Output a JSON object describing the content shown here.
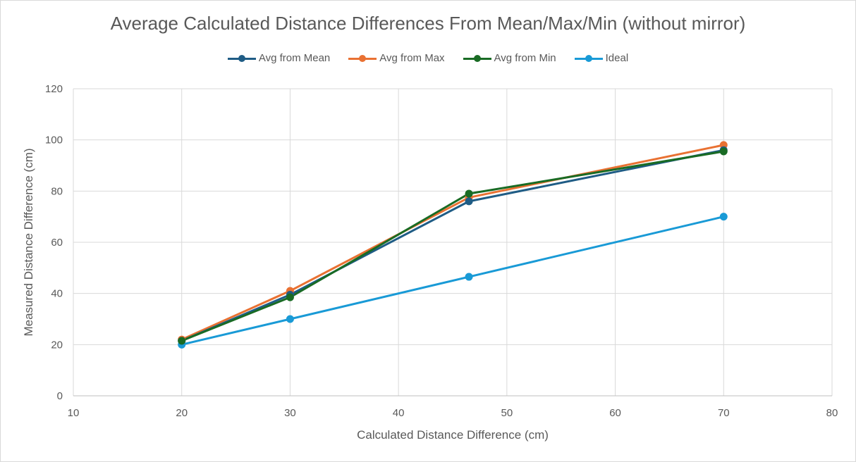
{
  "chart_data": {
    "type": "line",
    "title": "Average Calculated Distance Differences From Mean/Max/Min (without mirror)",
    "xlabel": "Calculated Distance Difference (cm)",
    "ylabel": "Measured Distance Difference (cm)",
    "xlim": [
      10,
      80
    ],
    "ylim": [
      0,
      120
    ],
    "xticks": [
      10,
      20,
      30,
      40,
      50,
      60,
      70,
      80
    ],
    "yticks": [
      0,
      20,
      40,
      60,
      80,
      100,
      120
    ],
    "grid": true,
    "legend_position": "top",
    "series": [
      {
        "name": "Avg from Mean",
        "color": "#1f5c85",
        "x": [
          20,
          30,
          46.5,
          70
        ],
        "y": [
          21.5,
          39.5,
          76,
          96
        ]
      },
      {
        "name": "Avg from Max",
        "color": "#e97132",
        "x": [
          20,
          30,
          46.5,
          70
        ],
        "y": [
          22,
          41,
          77.5,
          98
        ]
      },
      {
        "name": "Avg from Min",
        "color": "#196b24",
        "x": [
          20,
          30,
          46.5,
          70
        ],
        "y": [
          21.5,
          38.5,
          79,
          95.5
        ]
      },
      {
        "name": "Ideal",
        "color": "#199ad6",
        "x": [
          20,
          30,
          46.5,
          70
        ],
        "y": [
          20,
          30,
          46.5,
          70
        ]
      }
    ]
  }
}
